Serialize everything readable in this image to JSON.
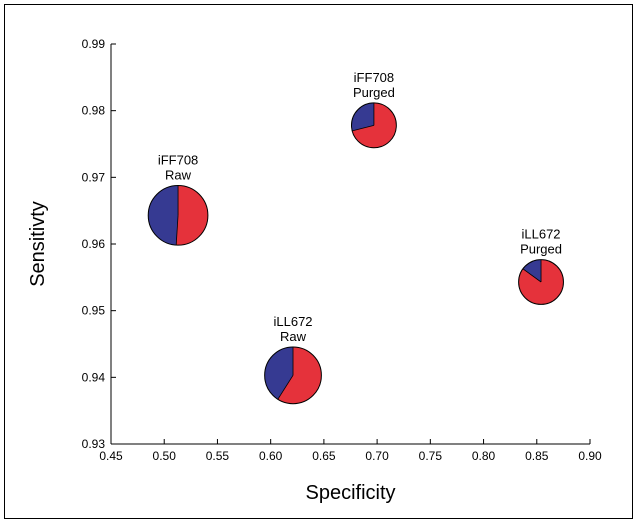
{
  "chart_data": {
    "type": "scatter",
    "subtype": "pie-markers",
    "title": "",
    "xlabel": "Specificity",
    "ylabel": "Sensitivty",
    "xlim": [
      0.45,
      0.9
    ],
    "ylim": [
      0.93,
      0.99
    ],
    "xticks": [
      "0.45",
      "0.50",
      "0.55",
      "0.60",
      "0.65",
      "0.70",
      "0.75",
      "0.80",
      "0.85",
      "0.90"
    ],
    "yticks": [
      "0.93",
      "0.94",
      "0.95",
      "0.96",
      "0.97",
      "0.98",
      "0.99"
    ],
    "grid": false,
    "legend": "none",
    "colors": {
      "red": "#e5323b",
      "blue": "#363a92"
    },
    "points": [
      {
        "label_line1": "iFF708",
        "label_line2": "Raw",
        "x": 0.513,
        "y": 0.9643,
        "size": 4423,
        "red_fraction": 0.51,
        "blue_fraction": 0.49
      },
      {
        "label_line1": "iFF708",
        "label_line2": "Purged",
        "x": 0.697,
        "y": 0.9778,
        "size": 2500,
        "red_fraction": 0.71,
        "blue_fraction": 0.29
      },
      {
        "label_line1": "iLL672",
        "label_line2": "Raw",
        "x": 0.621,
        "y": 0.9403,
        "size": 4000,
        "red_fraction": 0.59,
        "blue_fraction": 0.41
      },
      {
        "label_line1": "iLL672",
        "label_line2": "Purged",
        "x": 0.854,
        "y": 0.9543,
        "size": 2500,
        "red_fraction": 0.85,
        "blue_fraction": 0.15
      }
    ]
  }
}
